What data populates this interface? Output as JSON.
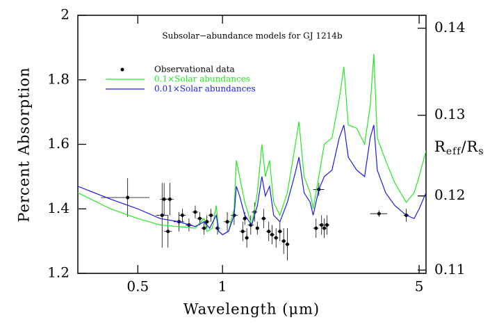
{
  "chart_data": {
    "type": "line",
    "title": "Subsolar−abundance models for GJ 1214b",
    "xlabel": "Wavelength (μm)",
    "ylabel": "Percent Absorption",
    "y2label": [
      "R",
      "eff",
      "/R",
      "s"
    ],
    "xscale": "log",
    "y2scale": "quadratic",
    "xlim": [
      0.306,
      5.29
    ],
    "xticks": [
      0.5,
      1,
      5
    ],
    "ylim": [
      1.2,
      2
    ],
    "yticks": [
      1.2,
      1.4,
      1.6,
      1.8,
      2
    ],
    "y2lim": [
      0.10954,
      0.14142
    ],
    "y2ticks": [
      0.11,
      0.12,
      0.13,
      0.14
    ],
    "series": [
      {
        "name": "Observational data",
        "color": "#000000",
        "mode": "errorbar",
        "x": [
          0.46,
          0.61,
          0.62,
          0.64,
          0.65,
          0.7,
          0.72,
          0.76,
          0.8,
          0.83,
          0.86,
          0.88,
          0.91,
          0.96,
          1.04,
          1.1,
          1.18,
          1.2,
          1.22,
          1.26,
          1.3,
          1.33,
          1.4,
          1.46,
          1.5,
          1.55,
          1.6,
          1.65,
          1.7,
          2.15,
          2.2,
          2.25,
          2.3,
          2.35,
          3.6,
          4.5
        ],
        "values": [
          1.435,
          1.38,
          1.43,
          1.33,
          1.43,
          1.36,
          1.38,
          1.35,
          1.39,
          1.37,
          1.34,
          1.36,
          1.38,
          1.34,
          1.36,
          1.38,
          1.33,
          1.37,
          1.31,
          1.35,
          1.39,
          1.34,
          1.37,
          1.33,
          1.32,
          1.31,
          1.33,
          1.3,
          1.29,
          1.34,
          1.46,
          1.35,
          1.34,
          1.35,
          1.385,
          1.38
        ],
        "xerr": [
          0.09,
          0.03,
          0.02,
          0.02,
          0.02,
          0.03,
          0.02,
          0.02,
          0.02,
          0.02,
          0.02,
          0.02,
          0.02,
          0.02,
          0.03,
          0.03,
          0.03,
          0.02,
          0.02,
          0.03,
          0.03,
          0.02,
          0.03,
          0.03,
          0.03,
          0.03,
          0.03,
          0.03,
          0.03,
          0.05,
          0.1,
          0.05,
          0.05,
          0.05,
          0.25,
          0.1
        ],
        "yerr": [
          0.06,
          0.1,
          0.05,
          0.05,
          0.05,
          0.03,
          0.02,
          0.02,
          0.02,
          0.02,
          0.02,
          0.02,
          0.02,
          0.02,
          0.03,
          0.03,
          0.03,
          0.02,
          0.03,
          0.03,
          0.03,
          0.02,
          0.03,
          0.03,
          0.03,
          0.03,
          0.03,
          0.04,
          0.05,
          0.03,
          0.02,
          0.03,
          0.03,
          0.03,
          0.01,
          0.02
        ]
      },
      {
        "name": "0.1×Solar abundances",
        "color": "#22e822",
        "mode": "line",
        "x": [
          0.306,
          0.4,
          0.5,
          0.6,
          0.7,
          0.8,
          0.86,
          0.88,
          0.92,
          0.95,
          0.97,
          1.0,
          1.05,
          1.1,
          1.12,
          1.15,
          1.2,
          1.27,
          1.33,
          1.38,
          1.42,
          1.47,
          1.52,
          1.6,
          1.7,
          1.8,
          1.87,
          1.95,
          2.05,
          2.1,
          2.2,
          2.3,
          2.45,
          2.6,
          2.7,
          2.8,
          3.0,
          3.2,
          3.35,
          3.45,
          3.55,
          3.8,
          4.1,
          4.5,
          4.8,
          5.0,
          5.29
        ],
        "values": [
          1.45,
          1.4,
          1.37,
          1.35,
          1.345,
          1.34,
          1.37,
          1.33,
          1.34,
          1.41,
          1.33,
          1.32,
          1.33,
          1.4,
          1.55,
          1.5,
          1.42,
          1.35,
          1.45,
          1.6,
          1.5,
          1.55,
          1.42,
          1.38,
          1.45,
          1.58,
          1.67,
          1.5,
          1.45,
          1.4,
          1.5,
          1.6,
          1.62,
          1.74,
          1.84,
          1.66,
          1.65,
          1.6,
          1.72,
          1.88,
          1.62,
          1.55,
          1.48,
          1.42,
          1.45,
          1.5,
          1.58
        ]
      },
      {
        "name": "0.01×Solar abundances",
        "color": "#1a1ae6",
        "mode": "line",
        "x": [
          0.306,
          0.4,
          0.5,
          0.6,
          0.7,
          0.8,
          0.86,
          0.9,
          0.95,
          0.97,
          1.0,
          1.05,
          1.1,
          1.12,
          1.15,
          1.2,
          1.27,
          1.33,
          1.38,
          1.42,
          1.47,
          1.52,
          1.6,
          1.7,
          1.8,
          1.87,
          1.95,
          2.05,
          2.1,
          2.2,
          2.3,
          2.45,
          2.6,
          2.7,
          2.8,
          3.0,
          3.2,
          3.35,
          3.45,
          3.55,
          3.8,
          4.1,
          4.5,
          4.8,
          5.0,
          5.29
        ],
        "values": [
          1.47,
          1.43,
          1.4,
          1.37,
          1.36,
          1.345,
          1.36,
          1.34,
          1.38,
          1.33,
          1.32,
          1.33,
          1.38,
          1.47,
          1.44,
          1.38,
          1.35,
          1.41,
          1.5,
          1.44,
          1.47,
          1.38,
          1.36,
          1.42,
          1.5,
          1.56,
          1.45,
          1.42,
          1.38,
          1.46,
          1.5,
          1.52,
          1.62,
          1.66,
          1.56,
          1.52,
          1.5,
          1.62,
          1.66,
          1.52,
          1.45,
          1.41,
          1.38,
          1.37,
          1.4,
          1.45
        ]
      }
    ]
  }
}
